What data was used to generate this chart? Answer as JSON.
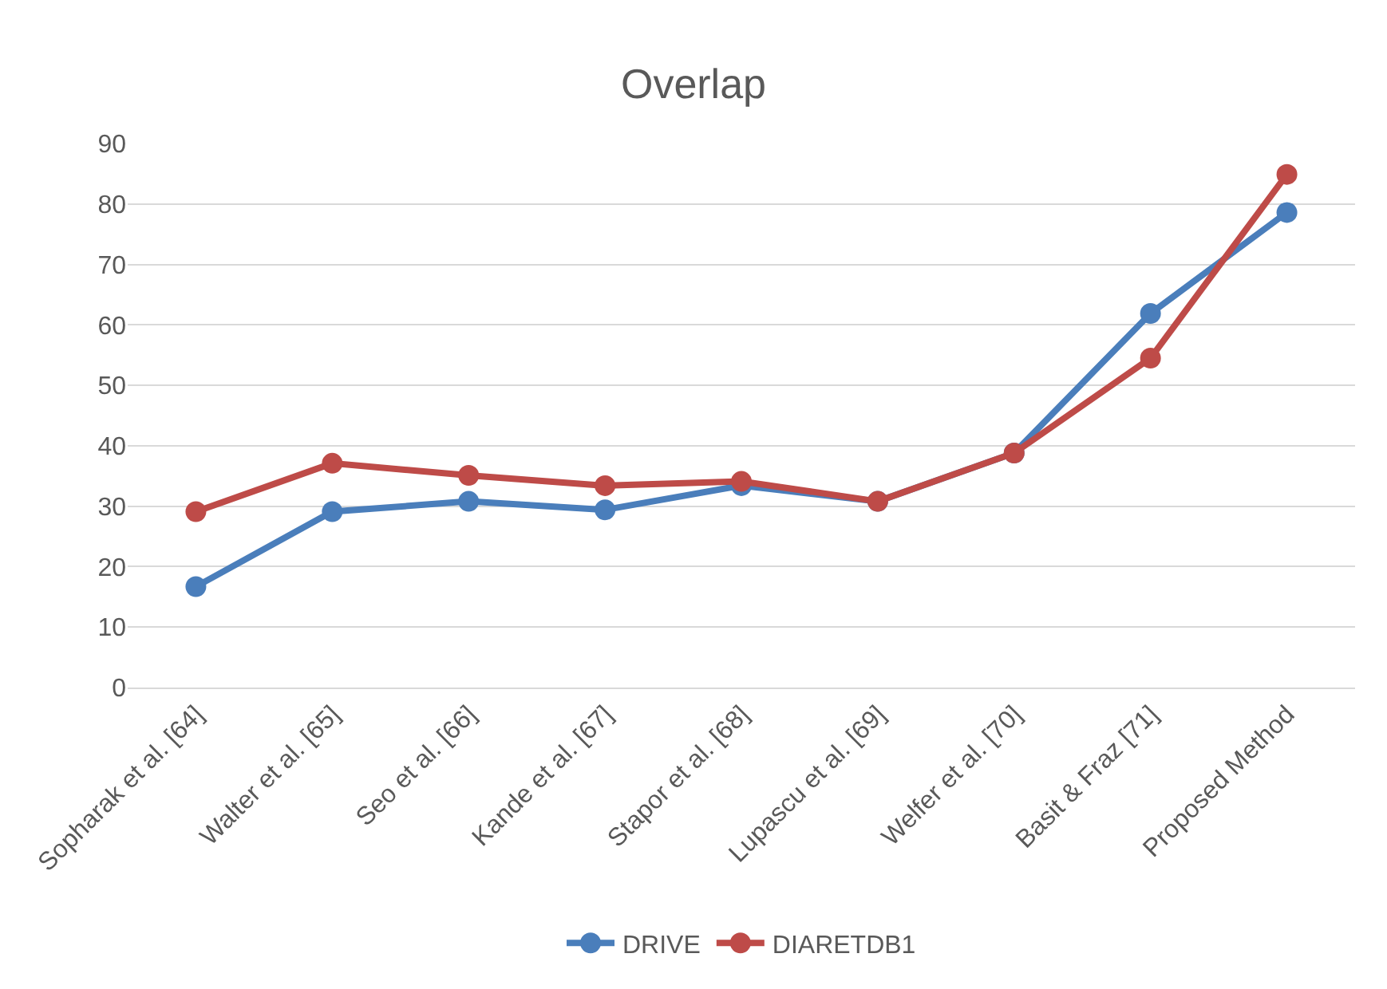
{
  "chart_data": {
    "type": "line",
    "title": "Overlap",
    "categories": [
      "Sopharak et al. [64]",
      "Walter et al. [65]",
      "Seo et al. [66]",
      "Kande et al. [67]",
      "Stapor et al. [68]",
      "Lupascu et al. [69]",
      "Welfer et al. [70]",
      "Basit & Fraz [71]",
      "Proposed Method"
    ],
    "series": [
      {
        "name": "DRIVE",
        "color": "#4a7ebb",
        "values": [
          16.7,
          29.1,
          30.8,
          29.4,
          33.4,
          30.8,
          38.8,
          61.9,
          78.6
        ]
      },
      {
        "name": "DIARETDB1",
        "color": "#be4b48",
        "values": [
          29.1,
          37.1,
          35.1,
          33.4,
          34.1,
          30.8,
          38.8,
          54.5,
          84.9
        ]
      }
    ],
    "ylim": [
      0,
      90
    ],
    "yticks": [
      0,
      10,
      20,
      30,
      40,
      50,
      60,
      70,
      80,
      90
    ],
    "grid": "y",
    "legend": "bottom",
    "marker": "circle",
    "line_style": "solid"
  }
}
